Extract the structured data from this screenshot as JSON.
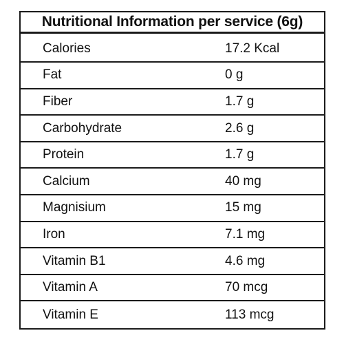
{
  "title": "Nutritional Information per service (6g)",
  "rows": [
    {
      "name": "Calories",
      "value": "17.2 Kcal"
    },
    {
      "name": "Fat",
      "value": "0 g"
    },
    {
      "name": "Fiber",
      "value": "1.7 g"
    },
    {
      "name": "Carbohydrate",
      "value": "2.6 g"
    },
    {
      "name": "Protein",
      "value": "1.7 g"
    },
    {
      "name": "Calcium",
      "value": "40 mg"
    },
    {
      "name": "Magnisium",
      "value": "15 mg"
    },
    {
      "name": "Iron",
      "value": "7.1 mg"
    },
    {
      "name": "Vitamin B1",
      "value": "4.6 mg"
    },
    {
      "name": "Vitamin A",
      "value": "70 mcg"
    },
    {
      "name": "Vitamin E",
      "value": "113 mcg"
    }
  ]
}
